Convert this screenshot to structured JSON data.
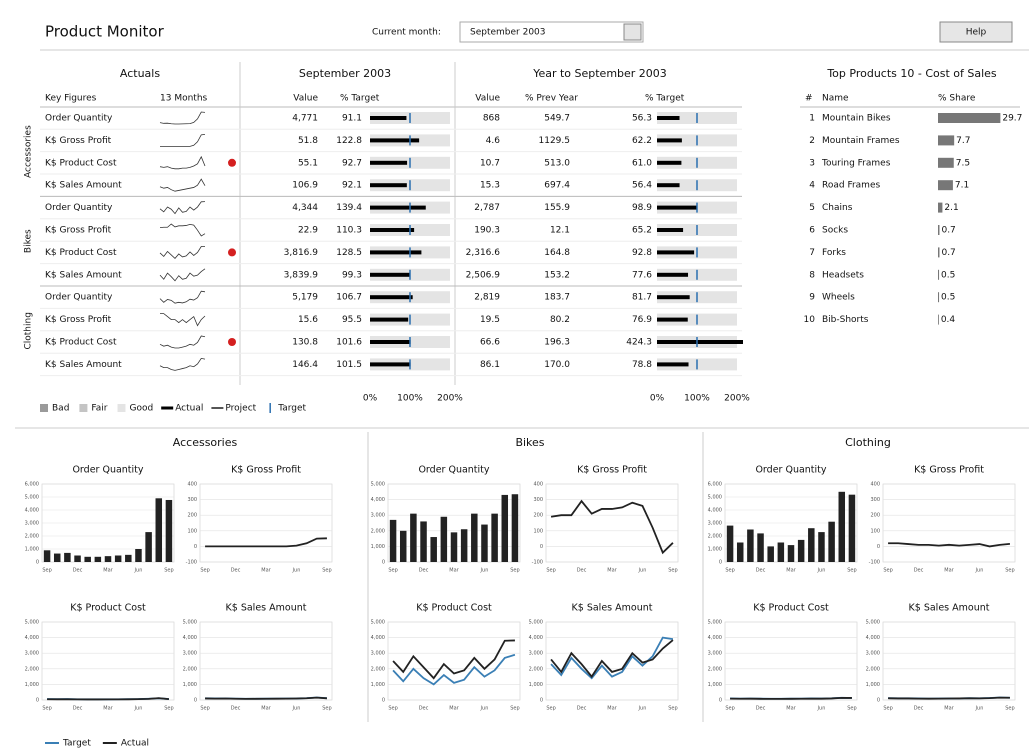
{
  "header": {
    "title": "Product Monitor",
    "month_label": "Current month:",
    "month": "September 2003",
    "help": "Help"
  },
  "table": {
    "headings": {
      "actuals": "Actuals",
      "month": "September 2003",
      "ytd": "Year to September 2003"
    },
    "columns": {
      "key": "Key Figures",
      "trend": "13 Months",
      "value": "Value",
      "target": "% Target",
      "ytd_value": "Value",
      "prev_year": "% Prev Year",
      "ytd_target": "% Target"
    },
    "bullet_ticks": [
      {
        "value": 0,
        "label": "0%"
      },
      {
        "value": 100,
        "label": "100%"
      },
      {
        "value": 200,
        "label": "200%"
      }
    ],
    "bullet_target": 100,
    "alert_color": "#d42020",
    "legend": [
      {
        "name": "Bad",
        "color": "#9a9a9a"
      },
      {
        "name": "Fair",
        "color": "#c4c4c4"
      },
      {
        "name": "Good",
        "color": "#e4e4e4"
      },
      {
        "name": "Actual",
        "color": "#000000"
      },
      {
        "name": "Project",
        "color": "#555555"
      },
      {
        "name": "Target",
        "color": "#2a6fb0"
      }
    ],
    "sections": [
      {
        "name": "Accessories",
        "rows": [
          {
            "name": "Order Quantity",
            "value": "4,771",
            "target": 91.1,
            "ytd_value": "868",
            "prev_year": "549.7",
            "ytd_target": 56.3,
            "alert": false
          },
          {
            "name": "K$ Gross Profit",
            "value": "51.8",
            "target": 122.8,
            "ytd_value": "4.6",
            "prev_year": "1129.5",
            "ytd_target": 62.2,
            "alert": false
          },
          {
            "name": "K$ Product Cost",
            "value": "55.1",
            "target": 92.7,
            "ytd_value": "10.7",
            "prev_year": "513.0",
            "ytd_target": 61,
            "ytd_target_label": "61.0",
            "alert": true
          },
          {
            "name": "K$ Sales Amount",
            "value": "106.9",
            "target": 92.1,
            "ytd_value": "15.3",
            "prev_year": "697.4",
            "ytd_target": 56.4,
            "alert": false
          }
        ]
      },
      {
        "name": "Bikes",
        "rows": [
          {
            "name": "Order Quantity",
            "value": "4,344",
            "target": 139.4,
            "ytd_value": "2,787",
            "prev_year": "155.9",
            "ytd_target": 98.9,
            "alert": false
          },
          {
            "name": "K$ Gross Profit",
            "value": "22.9",
            "target": 110.3,
            "ytd_value": "190.3",
            "prev_year": "12.1",
            "ytd_target": 65.2,
            "alert": false
          },
          {
            "name": "K$ Product Cost",
            "value": "3,816.9",
            "target": 128.5,
            "ytd_value": "2,316.6",
            "prev_year": "164.8",
            "ytd_target": 92.8,
            "alert": true
          },
          {
            "name": "K$ Sales Amount",
            "value": "3,839.9",
            "target": 99.3,
            "ytd_value": "2,506.9",
            "prev_year": "153.2",
            "ytd_target": 77.6,
            "alert": false
          }
        ]
      },
      {
        "name": "Clothing",
        "rows": [
          {
            "name": "Order Quantity",
            "value": "5,179",
            "target": 106.7,
            "ytd_value": "2,819",
            "prev_year": "183.7",
            "ytd_target": 81.7,
            "alert": false
          },
          {
            "name": "K$ Gross Profit",
            "value": "15.6",
            "target": 95.5,
            "ytd_value": "19.5",
            "prev_year": "80.2",
            "ytd_target": 76.9,
            "alert": false
          },
          {
            "name": "K$ Product Cost",
            "value": "130.8",
            "target": 101.6,
            "ytd_value": "66.6",
            "prev_year": "196.3",
            "ytd_target": 424.3,
            "alert": true
          },
          {
            "name": "K$ Sales Amount",
            "value": "146.4",
            "target": 101.5,
            "ytd_value": "86.1",
            "prev_year": "170.0",
            "ytd_target": 78.8,
            "alert": false
          }
        ]
      }
    ]
  },
  "top_products": {
    "title": "Top Products 10 - Cost of Sales",
    "columns": {
      "rank": "#",
      "name": "Name",
      "share": "% Share"
    },
    "color": "#777777",
    "rows": [
      {
        "rank": 1,
        "name": "Mountain Bikes",
        "share": 29.7
      },
      {
        "rank": 2,
        "name": "Mountain Frames",
        "share": 7.7
      },
      {
        "rank": 3,
        "name": "Touring Frames",
        "share": 7.5
      },
      {
        "rank": 4,
        "name": "Road Frames",
        "share": 7.1
      },
      {
        "rank": 5,
        "name": "Chains",
        "share": 2.1
      },
      {
        "rank": 6,
        "name": "Socks",
        "share": 0.7
      },
      {
        "rank": 7,
        "name": "Forks",
        "share": 0.7
      },
      {
        "rank": 8,
        "name": "Headsets",
        "share": 0.5
      },
      {
        "rank": 9,
        "name": "Wheels",
        "share": 0.5
      },
      {
        "rank": 10,
        "name": "Bib-Shorts",
        "share": 0.4
      }
    ]
  },
  "charts": {
    "legend": [
      {
        "name": "Target",
        "color": "#3a7fb5"
      },
      {
        "name": "Actual",
        "color": "#222222"
      }
    ],
    "categories": [
      "Sep",
      null,
      null,
      "Dec",
      null,
      null,
      "Mar",
      null,
      null,
      "Jun",
      null,
      null,
      "Sep"
    ],
    "sections": [
      {
        "name": "Accessories",
        "charts": [
          {
            "title": "Order Quantity",
            "type": "bar",
            "ylim": [
              0,
              6000
            ],
            "yticks": [
              0,
              {
                "value": 1000,
                "label": "1,000"
              },
              {
                "value": 2000,
                "label": "2,000"
              },
              {
                "value": 3000,
                "label": "3,000"
              },
              {
                "value": 4000,
                "label": "4,000"
              },
              {
                "value": 5000,
                "label": "5,000"
              },
              {
                "value": 6000,
                "label": "6,000"
              }
            ],
            "actual": [
              900,
              650,
              700,
              500,
              400,
              400,
              450,
              500,
              550,
              1000,
              2300,
              4900,
              4771
            ]
          },
          {
            "title": "K$ Gross Profit",
            "type": "line",
            "ylim": [
              -100,
              400
            ],
            "yticks": [
              -100,
              0,
              100,
              200,
              300,
              400
            ],
            "actual": [
              0,
              0,
              0,
              0,
              0,
              0,
              0,
              0,
              0,
              5,
              20,
              50,
              52
            ]
          },
          {
            "title": "K$ Product Cost",
            "type": "line",
            "ylim": [
              0,
              5000
            ],
            "yticks": [
              0,
              {
                "value": 1000,
                "label": "1,000"
              },
              {
                "value": 2000,
                "label": "2,000"
              },
              {
                "value": 3000,
                "label": "3,000"
              },
              {
                "value": 4000,
                "label": "4,000"
              },
              {
                "value": 5000,
                "label": "5,000"
              }
            ],
            "target": [
              60,
              55,
              60,
              50,
              45,
              45,
              45,
              50,
              55,
              60,
              80,
              110,
              60
            ],
            "actual": [
              50,
              45,
              50,
              40,
              35,
              35,
              40,
              40,
              45,
              55,
              70,
              120,
              55
            ]
          },
          {
            "title": "K$ Sales Amount",
            "type": "line",
            "ylim": [
              0,
              5000
            ],
            "yticks": [
              0,
              {
                "value": 1000,
                "label": "1,000"
              },
              {
                "value": 2000,
                "label": "2,000"
              },
              {
                "value": 3000,
                "label": "3,000"
              },
              {
                "value": 4000,
                "label": "4,000"
              },
              {
                "value": 5000,
                "label": "5,000"
              }
            ],
            "target": [
              110,
              100,
              100,
              90,
              80,
              80,
              85,
              90,
              95,
              100,
              120,
              160,
              115
            ],
            "actual": [
              100,
              90,
              95,
              80,
              70,
              75,
              80,
              85,
              90,
              95,
              110,
              150,
              107
            ]
          }
        ]
      },
      {
        "name": "Bikes",
        "charts": [
          {
            "title": "Order Quantity",
            "type": "bar",
            "ylim": [
              0,
              5000
            ],
            "yticks": [
              0,
              {
                "value": 1000,
                "label": "1,000"
              },
              {
                "value": 2000,
                "label": "2,000"
              },
              {
                "value": 3000,
                "label": "3,000"
              },
              {
                "value": 4000,
                "label": "4,000"
              },
              {
                "value": 5000,
                "label": "5,000"
              }
            ],
            "actual": [
              2700,
              2000,
              3100,
              2600,
              1600,
              2900,
              1900,
              2100,
              3100,
              2400,
              3100,
              4300,
              4344
            ]
          },
          {
            "title": "K$ Gross Profit",
            "type": "line",
            "ylim": [
              -100,
              400
            ],
            "yticks": [
              -100,
              0,
              100,
              200,
              300,
              400
            ],
            "actual": [
              190,
              200,
              200,
              290,
              210,
              240,
              240,
              250,
              280,
              260,
              120,
              -40,
              23
            ]
          },
          {
            "title": "K$ Product Cost",
            "type": "line",
            "ylim": [
              0,
              5000
            ],
            "yticks": [
              0,
              {
                "value": 1000,
                "label": "1,000"
              },
              {
                "value": 2000,
                "label": "2,000"
              },
              {
                "value": 3000,
                "label": "3,000"
              },
              {
                "value": 4000,
                "label": "4,000"
              },
              {
                "value": 5000,
                "label": "5,000"
              }
            ],
            "target": [
              1900,
              1200,
              2000,
              1400,
              1000,
              1600,
              1100,
              1300,
              2100,
              1500,
              1900,
              2700,
              2900
            ],
            "actual": [
              2500,
              1800,
              2800,
              2100,
              1400,
              2300,
              1700,
              1900,
              2700,
              2000,
              2600,
              3800,
              3817
            ]
          },
          {
            "title": "K$ Sales Amount",
            "type": "line",
            "ylim": [
              0,
              5000
            ],
            "yticks": [
              0,
              {
                "value": 1000,
                "label": "1,000"
              },
              {
                "value": 2000,
                "label": "2,000"
              },
              {
                "value": 3000,
                "label": "3,000"
              },
              {
                "value": 4000,
                "label": "4,000"
              },
              {
                "value": 5000,
                "label": "5,000"
              }
            ],
            "target": [
              2300,
              1600,
              2700,
              2000,
              1400,
              2200,
              1500,
              1800,
              2800,
              2200,
              2800,
              4000,
              3900
            ],
            "actual": [
              2600,
              1800,
              3000,
              2300,
              1500,
              2500,
              1800,
              2000,
              3000,
              2400,
              2600,
              3300,
              3840
            ]
          }
        ]
      },
      {
        "name": "Clothing",
        "charts": [
          {
            "title": "Order Quantity",
            "type": "bar",
            "ylim": [
              0,
              6000
            ],
            "yticks": [
              0,
              {
                "value": 1000,
                "label": "1,000"
              },
              {
                "value": 2000,
                "label": "2,000"
              },
              {
                "value": 3000,
                "label": "3,000"
              },
              {
                "value": 4000,
                "label": "4,000"
              },
              {
                "value": 5000,
                "label": "5,000"
              },
              {
                "value": 6000,
                "label": "6,000"
              }
            ],
            "actual": [
              2800,
              1500,
              2500,
              2200,
              1200,
              1500,
              1300,
              1700,
              2600,
              2300,
              3100,
              5400,
              5179
            ]
          },
          {
            "title": "K$ Gross Profit",
            "type": "line",
            "ylim": [
              -100,
              400
            ],
            "yticks": [
              -100,
              0,
              100,
              200,
              300,
              400
            ],
            "actual": [
              20,
              20,
              15,
              10,
              10,
              5,
              10,
              5,
              10,
              15,
              0,
              10,
              16
            ]
          },
          {
            "title": "K$ Product Cost",
            "type": "line",
            "ylim": [
              0,
              5000
            ],
            "yticks": [
              0,
              {
                "value": 1000,
                "label": "1,000"
              },
              {
                "value": 2000,
                "label": "2,000"
              },
              {
                "value": 3000,
                "label": "3,000"
              },
              {
                "value": 4000,
                "label": "4,000"
              },
              {
                "value": 5000,
                "label": "5,000"
              }
            ],
            "target": [
              100,
              90,
              95,
              85,
              80,
              80,
              85,
              90,
              100,
              95,
              110,
              140,
              130
            ],
            "actual": [
              90,
              80,
              85,
              75,
              70,
              70,
              75,
              80,
              90,
              85,
              100,
              135,
              131
            ]
          },
          {
            "title": "K$ Sales Amount",
            "type": "line",
            "ylim": [
              0,
              5000
            ],
            "yticks": [
              0,
              {
                "value": 1000,
                "label": "1,000"
              },
              {
                "value": 2000,
                "label": "2,000"
              },
              {
                "value": 3000,
                "label": "3,000"
              },
              {
                "value": 4000,
                "label": "4,000"
              },
              {
                "value": 5000,
                "label": "5,000"
              }
            ],
            "target": [
              120,
              110,
              110,
              100,
              90,
              95,
              100,
              105,
              115,
              110,
              130,
              160,
              145
            ],
            "actual": [
              110,
              100,
              100,
              90,
              85,
              90,
              95,
              100,
              110,
              105,
              120,
              150,
              146
            ]
          }
        ]
      }
    ]
  }
}
